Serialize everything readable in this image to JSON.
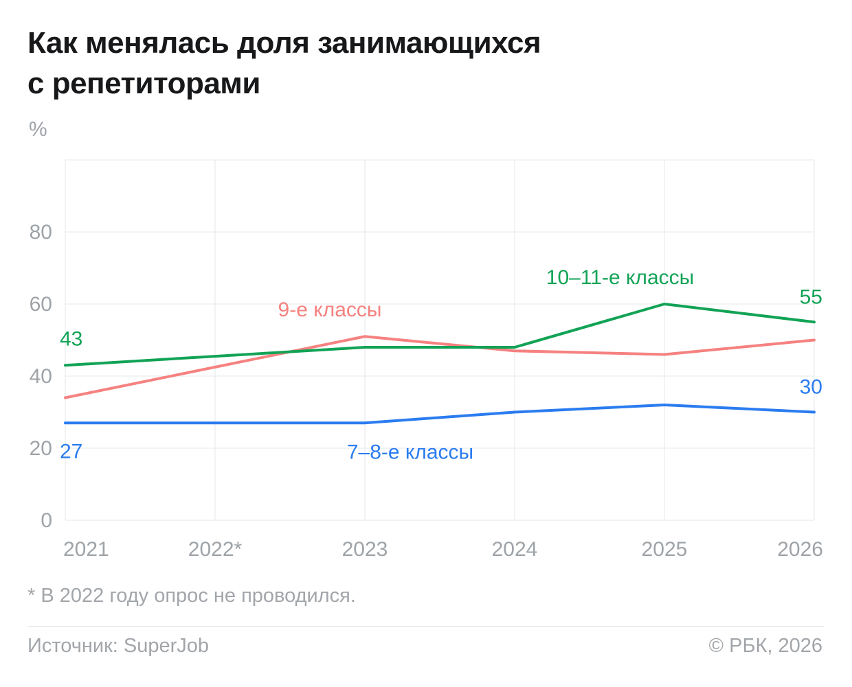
{
  "header": {
    "title_line1": "Как менялась доля занимающихся",
    "title_line2": "с репетиторами",
    "unit": "%"
  },
  "footer": {
    "footnote": "* В 2022 году опрос не проводился.",
    "source": "Источник: SuperJob",
    "copyright": "© РБК, 2026"
  },
  "chart_data": {
    "type": "line",
    "categories": [
      "2021",
      "2022*",
      "2023",
      "2024",
      "2025",
      "2026"
    ],
    "ylim": [
      0,
      100
    ],
    "yticks": [
      0,
      20,
      40,
      60,
      80
    ],
    "grid": true,
    "grid_color": "#e5e7ea",
    "tick_color": "#9ea3a8",
    "series": [
      {
        "id": "grades-9",
        "name": "9-е классы",
        "color": "#f58280",
        "values": [
          34,
          42.5,
          51,
          47,
          46,
          50
        ],
        "name_pos": {
          "xi": 1.42,
          "v": 58.5
        }
      },
      {
        "id": "grades-10-11",
        "name": "10–11-е классы",
        "color": "#12a356",
        "values": [
          43,
          45.5,
          48,
          48,
          60,
          55
        ],
        "start_label": "43",
        "start_label_position": "above",
        "end_label": "55",
        "name_pos": {
          "xi": 3.21,
          "v": 67.4
        }
      },
      {
        "id": "grades-7-8",
        "name": "7–8-е классы",
        "color": "#2b7cf0",
        "values": [
          27,
          27,
          27,
          30,
          32,
          30
        ],
        "start_label": "27",
        "start_label_position": "below",
        "end_label": "30",
        "name_pos": {
          "xi": 1.88,
          "v": 19
        }
      }
    ]
  }
}
